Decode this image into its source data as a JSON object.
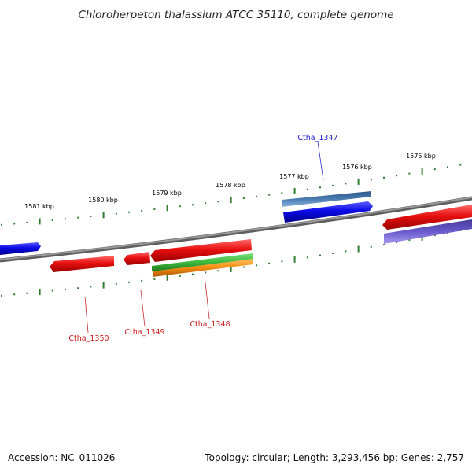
{
  "title": "Chloroherpeton thalassium ATCC 35110, complete genome",
  "footer": {
    "accession": "Accession: NC_011026",
    "summary": "Topology: circular; Length: 3,293,456 bp; Genes: 2,757"
  },
  "ticks": {
    "labels": [
      "1581 kbp",
      "1580 kbp",
      "1579 kbp",
      "1578 kbp",
      "1577 kbp",
      "1576 kbp",
      "1575 kbp"
    ],
    "color": "#2e7d2e"
  },
  "genes": {
    "labels": [
      {
        "name": "Ctha_1347",
        "color": "#1a1acc"
      },
      {
        "name": "Ctha_1350",
        "color": "#cc1a1a"
      },
      {
        "name": "Ctha_1349",
        "color": "#cc1a1a"
      },
      {
        "name": "Ctha_1348",
        "color": "#cc1a1a"
      }
    ]
  },
  "colors": {
    "backbone": "#808080",
    "gene_red": "#e01010",
    "gene_blue": "#0a0ae6",
    "gene_steel": "#4a7ab0",
    "gene_purple": "#6a5acd",
    "gene_green": "#3cb83c",
    "gene_orange": "#f08c10"
  }
}
